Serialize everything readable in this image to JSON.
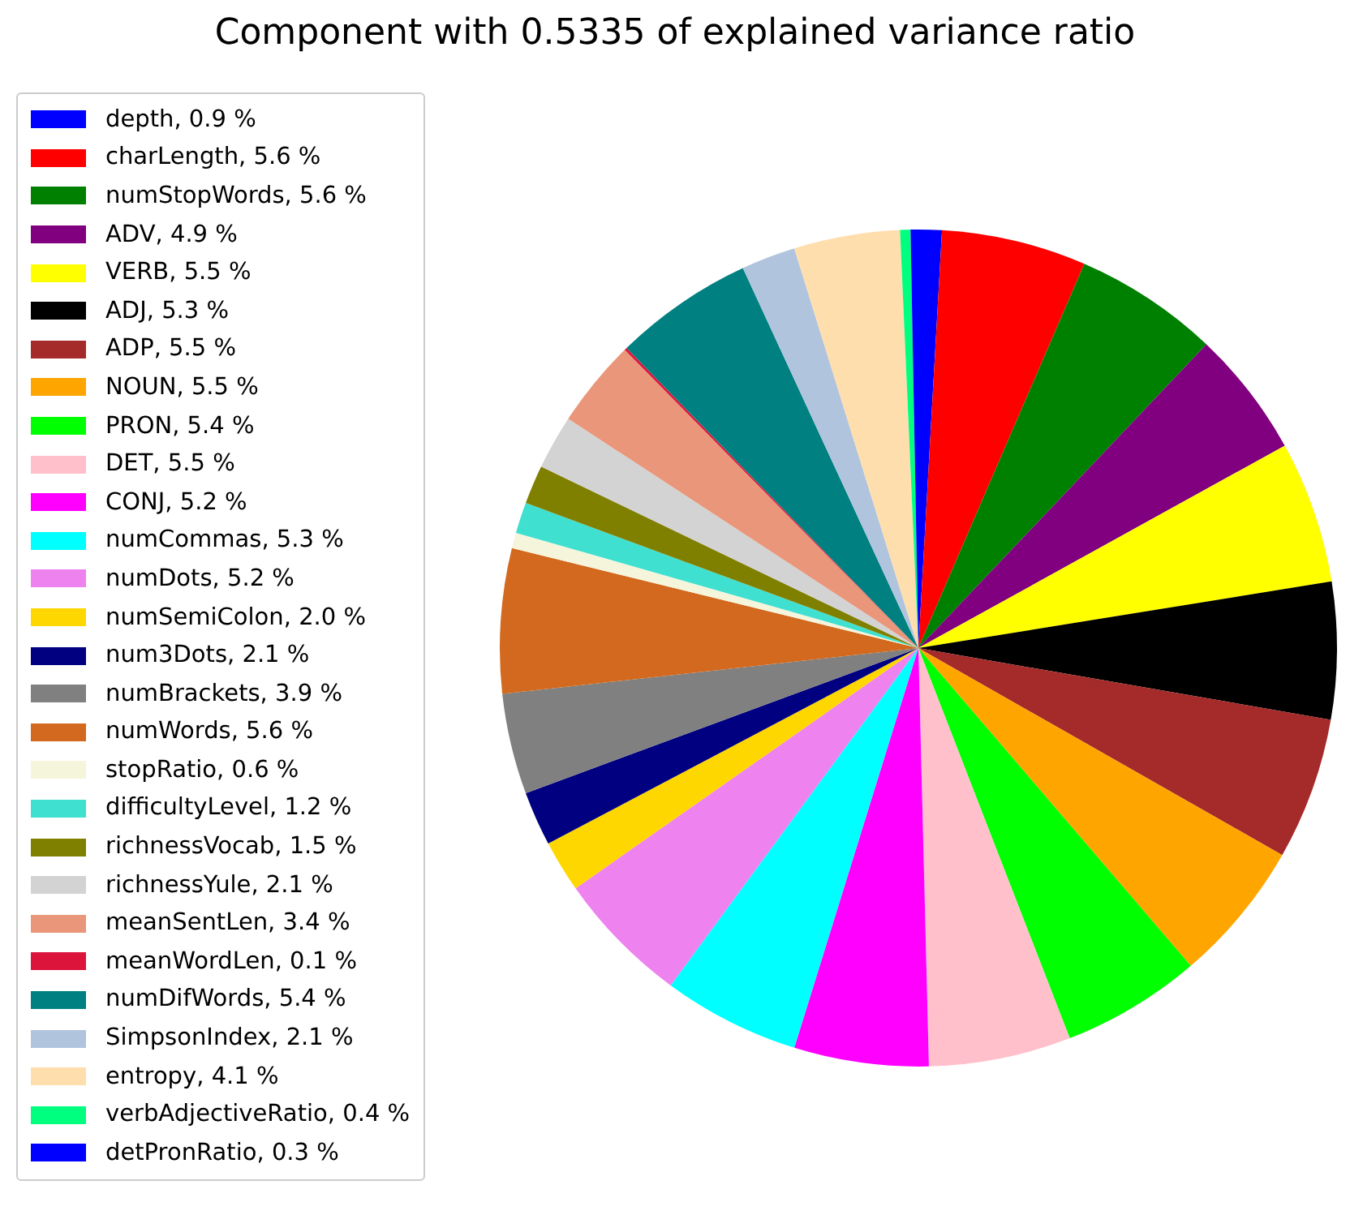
{
  "chart_data": {
    "type": "pie",
    "title": "Component with 0.5335 of explained variance ratio",
    "legend": "top left",
    "categories": [
      "depth, 0.9 %",
      "charLength, 5.6 %",
      "numStopWords, 5.6 %",
      "ADV, 4.9 %",
      "VERB, 5.5 %",
      "ADJ, 5.3 %",
      "ADP, 5.5 %",
      "NOUN, 5.5 %",
      "PRON, 5.4 %",
      "DET, 5.5 %",
      "CONJ, 5.2 %",
      "numCommas, 5.3 %",
      "numDots, 5.2 %",
      "numSemiColon, 2.0 %",
      "num3Dots, 2.1 %",
      "numBrackets, 3.9 %",
      "numWords, 5.6 %",
      "stopRatio, 0.6 %",
      "difficultyLevel, 1.2 %",
      "richnessVocab, 1.5 %",
      "richnessYule, 2.1 %",
      "meanSentLen, 3.4 %",
      "meanWordLen, 0.1 %",
      "numDifWords, 5.4 %",
      "SimpsonIndex, 2.1 %",
      "entropy, 4.1 %",
      "verbAdjectiveRatio, 0.4 %",
      "detPronRatio, 0.3 %"
    ],
    "values": [
      0.9,
      5.6,
      5.6,
      4.9,
      5.5,
      5.3,
      5.5,
      5.5,
      5.4,
      5.5,
      5.2,
      5.3,
      5.2,
      2.0,
      2.1,
      3.9,
      5.6,
      0.6,
      1.2,
      1.5,
      2.1,
      3.4,
      0.1,
      5.4,
      2.1,
      4.1,
      0.4,
      0.3
    ],
    "colors": [
      "#0000ff",
      "#ff0000",
      "#008000",
      "#800080",
      "#ffff00",
      "#000000",
      "#a52a2a",
      "#ffa500",
      "#00ff00",
      "#ffc0cb",
      "#ff00ff",
      "#00ffff",
      "#ee82ee",
      "#ffd700",
      "#000080",
      "#808080",
      "#d2691e",
      "#f5f5dc",
      "#40e0d0",
      "#808000",
      "#d3d3d3",
      "#e9967a",
      "#dc143c",
      "#008080",
      "#b0c4de",
      "#ffdead",
      "#00ff7f",
      "#0000ff"
    ]
  }
}
